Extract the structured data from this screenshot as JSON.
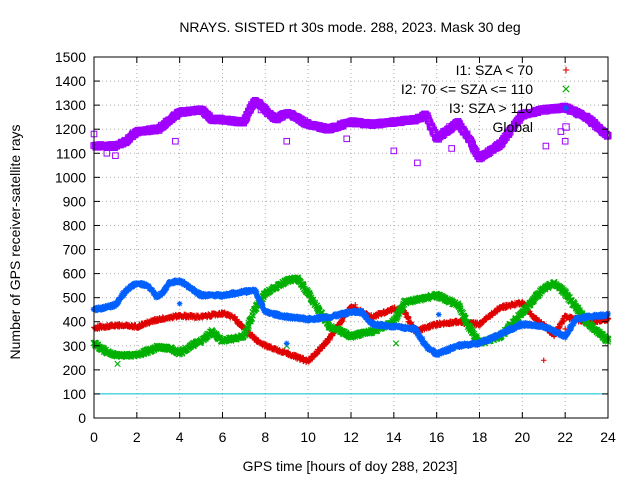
{
  "chart_data": {
    "type": "scatter",
    "title": "NRAYS. SISTED rt 30s mode. 288, 2023. Mask 30 deg",
    "xlabel": "GPS time [hours of doy 288, 2023]",
    "ylabel": "Number of GPS receiver-satellite rays",
    "xlim": [
      0,
      24
    ],
    "ylim": [
      0,
      1500
    ],
    "xticks": [
      "0",
      "2",
      "4",
      "6",
      "8",
      "10",
      "12",
      "14",
      "16",
      "18",
      "20",
      "22",
      "24"
    ],
    "yticks": [
      "0",
      "100",
      "200",
      "300",
      "400",
      "500",
      "600",
      "700",
      "800",
      "900",
      "1000",
      "1100",
      "1200",
      "1300",
      "1400",
      "1500"
    ],
    "grid": true,
    "legend_position": "top-right",
    "reference_line": {
      "y": 100,
      "color": "#00c0d0"
    },
    "series": [
      {
        "name": "I1: SZA < 70",
        "marker": "+",
        "color": "#e00000",
        "points": [
          [
            0,
            375
          ],
          [
            1,
            385
          ],
          [
            2,
            380
          ],
          [
            3,
            410
          ],
          [
            4,
            425
          ],
          [
            5,
            420
          ],
          [
            6,
            435
          ],
          [
            6.5,
            420
          ],
          [
            7,
            370
          ],
          [
            7.5,
            330
          ],
          [
            8,
            300
          ],
          [
            9,
            270
          ],
          [
            10,
            235
          ],
          [
            11,
            330
          ],
          [
            12,
            460
          ],
          [
            13,
            420
          ],
          [
            14,
            455
          ],
          [
            14.5,
            440
          ],
          [
            15,
            360
          ],
          [
            16,
            390
          ],
          [
            17,
            400
          ],
          [
            18,
            390
          ],
          [
            19,
            460
          ],
          [
            20,
            480
          ],
          [
            20.5,
            420
          ],
          [
            21,
            385
          ],
          [
            21.5,
            345
          ],
          [
            22,
            420
          ],
          [
            23,
            400
          ],
          [
            24,
            410
          ]
        ],
        "outliers": [
          [
            12.2,
            470
          ],
          [
            21,
            240
          ],
          [
            22,
            370
          ],
          [
            23.6,
            400
          ]
        ]
      },
      {
        "name": "I2: 70 <= SZA <= 110",
        "marker": "x",
        "color": "#00b000",
        "points": [
          [
            0,
            310
          ],
          [
            0.5,
            280
          ],
          [
            1,
            260
          ],
          [
            2,
            260
          ],
          [
            3,
            295
          ],
          [
            3.5,
            290
          ],
          [
            4,
            270
          ],
          [
            4.5,
            300
          ],
          [
            5,
            320
          ],
          [
            5.5,
            360
          ],
          [
            6,
            320
          ],
          [
            7,
            340
          ],
          [
            7.5,
            450
          ],
          [
            8,
            520
          ],
          [
            9,
            570
          ],
          [
            9.5,
            580
          ],
          [
            10,
            520
          ],
          [
            11,
            380
          ],
          [
            12,
            340
          ],
          [
            13,
            360
          ],
          [
            14,
            400
          ],
          [
            14.5,
            480
          ],
          [
            15,
            490
          ],
          [
            16,
            510
          ],
          [
            17,
            470
          ],
          [
            17.5,
            380
          ],
          [
            18,
            310
          ],
          [
            19,
            340
          ],
          [
            20,
            440
          ],
          [
            21,
            540
          ],
          [
            21.5,
            560
          ],
          [
            22,
            520
          ],
          [
            23,
            400
          ],
          [
            24,
            320
          ]
        ],
        "outliers": [
          [
            1.1,
            225
          ],
          [
            9,
            300
          ],
          [
            14.1,
            310
          ],
          [
            24,
            330
          ]
        ]
      },
      {
        "name": "I3: SZA > 110",
        "marker": "*",
        "color": "#0060ff",
        "points": [
          [
            0,
            450
          ],
          [
            1,
            470
          ],
          [
            1.5,
            530
          ],
          [
            2,
            560
          ],
          [
            2.5,
            550
          ],
          [
            3,
            500
          ],
          [
            3.5,
            560
          ],
          [
            4,
            570
          ],
          [
            5,
            510
          ],
          [
            6,
            510
          ],
          [
            7,
            525
          ],
          [
            7.5,
            530
          ],
          [
            8,
            440
          ],
          [
            9,
            420
          ],
          [
            10,
            410
          ],
          [
            11,
            420
          ],
          [
            12,
            440
          ],
          [
            12.5,
            440
          ],
          [
            13,
            390
          ],
          [
            14,
            380
          ],
          [
            15,
            370
          ],
          [
            15.5,
            300
          ],
          [
            16,
            265
          ],
          [
            17,
            300
          ],
          [
            18,
            310
          ],
          [
            19,
            350
          ],
          [
            20,
            390
          ],
          [
            21,
            380
          ],
          [
            22,
            340
          ],
          [
            22.5,
            410
          ],
          [
            23,
            420
          ],
          [
            24,
            430
          ]
        ],
        "outliers": [
          [
            4,
            475
          ],
          [
            9,
            310
          ],
          [
            16.1,
            430
          ]
        ]
      },
      {
        "name": "Global",
        "marker": "square",
        "color": "#a000ff",
        "points": [
          [
            0,
            1130
          ],
          [
            1,
            1130
          ],
          [
            1.5,
            1150
          ],
          [
            2,
            1190
          ],
          [
            3,
            1200
          ],
          [
            4,
            1270
          ],
          [
            5,
            1280
          ],
          [
            5.5,
            1240
          ],
          [
            6,
            1240
          ],
          [
            7,
            1230
          ],
          [
            7.5,
            1320
          ],
          [
            8,
            1280
          ],
          [
            8.5,
            1240
          ],
          [
            9,
            1270
          ],
          [
            10,
            1220
          ],
          [
            11,
            1200
          ],
          [
            12,
            1230
          ],
          [
            13,
            1220
          ],
          [
            14,
            1230
          ],
          [
            15,
            1240
          ],
          [
            15.5,
            1260
          ],
          [
            16,
            1160
          ],
          [
            17,
            1230
          ],
          [
            17.5,
            1160
          ],
          [
            18,
            1080
          ],
          [
            19,
            1140
          ],
          [
            20,
            1260
          ],
          [
            21,
            1280
          ],
          [
            22,
            1290
          ],
          [
            23,
            1250
          ],
          [
            24,
            1170
          ]
        ],
        "outliers": [
          [
            0,
            1180
          ],
          [
            0.6,
            1100
          ],
          [
            1,
            1090
          ],
          [
            3.8,
            1150
          ],
          [
            7.8,
            1280
          ],
          [
            9,
            1150
          ],
          [
            11.8,
            1160
          ],
          [
            14,
            1110
          ],
          [
            15.1,
            1060
          ],
          [
            16.7,
            1120
          ],
          [
            21.1,
            1130
          ],
          [
            21.8,
            1190
          ],
          [
            22,
            1150
          ]
        ]
      }
    ]
  }
}
